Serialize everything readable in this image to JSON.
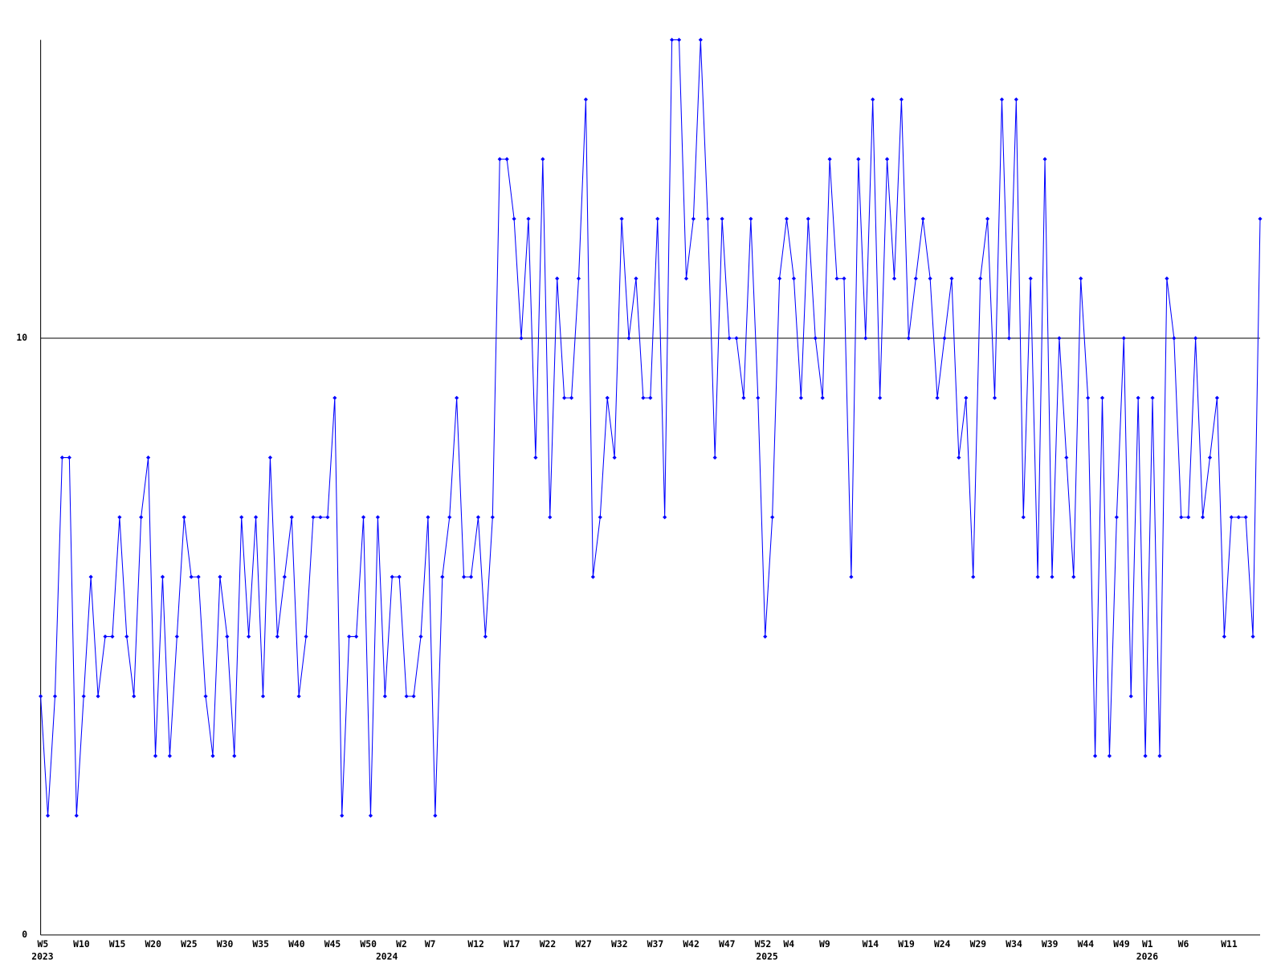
{
  "chart_data": {
    "type": "line",
    "categories": [
      "W5",
      null,
      null,
      null,
      null,
      "W10",
      null,
      null,
      null,
      null,
      "W15",
      null,
      null,
      null,
      null,
      "W20",
      null,
      null,
      null,
      null,
      "W25",
      null,
      null,
      null,
      null,
      "W30",
      null,
      null,
      null,
      null,
      "W35",
      null,
      null,
      null,
      null,
      "W40",
      null,
      null,
      null,
      null,
      "W45",
      null,
      null,
      null,
      null,
      "W50",
      null,
      null,
      null,
      null,
      "W2",
      null,
      null,
      null,
      "W7",
      null,
      null,
      null,
      null,
      null,
      "W12",
      null,
      null,
      null,
      null,
      "W17",
      null,
      null,
      null,
      null,
      "W22",
      null,
      null,
      null,
      null,
      "W27",
      null,
      null,
      null,
      null,
      "W32",
      null,
      null,
      null,
      null,
      "W37",
      null,
      null,
      null,
      null,
      "W42",
      null,
      null,
      null,
      null,
      "W47",
      null,
      null,
      null,
      null,
      "W52",
      null,
      null,
      null,
      "W4",
      null,
      null,
      null,
      null,
      "W9",
      null,
      null,
      null,
      null,
      null,
      "W14",
      null,
      null,
      null,
      null,
      "W19",
      null,
      null,
      null,
      null,
      "W24",
      null,
      null,
      null,
      null,
      "W29",
      null,
      null,
      null,
      null,
      "W34",
      null,
      null,
      null,
      null,
      "W39",
      null,
      null,
      null,
      null,
      "W44",
      null,
      null,
      null,
      null,
      "W49",
      null,
      null,
      null,
      "W1",
      null,
      null,
      null,
      null,
      "W6",
      null,
      null,
      null,
      null,
      null,
      "W11",
      null,
      null,
      null,
      null,
      null
    ],
    "year_labels": [
      "2023",
      null,
      null,
      null,
      null,
      null,
      null,
      null,
      null,
      null,
      null,
      null,
      null,
      null,
      null,
      null,
      null,
      null,
      null,
      null,
      null,
      null,
      null,
      null,
      null,
      null,
      null,
      null,
      null,
      null,
      null,
      null,
      null,
      null,
      null,
      null,
      null,
      null,
      null,
      null,
      null,
      null,
      null,
      null,
      null,
      null,
      null,
      null,
      "2024",
      null,
      null,
      null,
      null,
      null,
      null,
      null,
      null,
      null,
      null,
      null,
      null,
      null,
      null,
      null,
      null,
      null,
      null,
      null,
      null,
      null,
      null,
      null,
      null,
      null,
      null,
      null,
      null,
      null,
      null,
      null,
      null,
      null,
      null,
      null,
      null,
      null,
      null,
      null,
      null,
      null,
      null,
      null,
      null,
      null,
      null,
      null,
      null,
      null,
      null,
      null,
      null,
      "2025",
      null,
      null,
      null,
      null,
      null,
      null,
      null,
      null,
      null,
      null,
      null,
      null,
      null,
      null,
      null,
      null,
      null,
      null,
      null,
      null,
      null,
      null,
      null,
      null,
      null,
      null,
      null,
      null,
      null,
      null,
      null,
      null,
      null,
      null,
      null,
      null,
      null,
      null,
      null,
      null,
      null,
      null,
      null,
      null,
      null,
      null,
      null,
      null,
      null,
      null,
      null,
      null,
      "2026",
      null,
      null,
      null,
      null,
      null,
      null,
      null,
      null,
      null,
      null,
      null,
      null,
      null,
      null,
      null,
      null
    ],
    "values": [
      4,
      2,
      4,
      8,
      8,
      2,
      4,
      6,
      4,
      5,
      5,
      7,
      5,
      4,
      7,
      8,
      3,
      6,
      3,
      5,
      7,
      6,
      6,
      4,
      3,
      6,
      5,
      3,
      7,
      5,
      7,
      4,
      8,
      5,
      6,
      7,
      4,
      5,
      7,
      7,
      7,
      9,
      2,
      5,
      5,
      7,
      2,
      7,
      4,
      6,
      6,
      4,
      4,
      5,
      7,
      2,
      6,
      7,
      9,
      6,
      6,
      7,
      5,
      7,
      13,
      13,
      12,
      10,
      12,
      8,
      13,
      7,
      11,
      9,
      9,
      11,
      14,
      6,
      7,
      9,
      8,
      12,
      10,
      11,
      9,
      9,
      12,
      7,
      15,
      15,
      11,
      12,
      15,
      12,
      8,
      12,
      10,
      10,
      9,
      12,
      9,
      5,
      7,
      11,
      12,
      11,
      9,
      12,
      10,
      9,
      13,
      11,
      11,
      6,
      13,
      10,
      14,
      9,
      13,
      11,
      14,
      10,
      11,
      12,
      11,
      9,
      10,
      11,
      8,
      9,
      6,
      11,
      12,
      9,
      14,
      10,
      14,
      7,
      11,
      6,
      13,
      6,
      10,
      8,
      6,
      11,
      9,
      3,
      9,
      3,
      7,
      10,
      4,
      9,
      3,
      9,
      3,
      11,
      10,
      7,
      7,
      10,
      7,
      8,
      9,
      5,
      7,
      7,
      7,
      5,
      12
    ],
    "color": "#0000ff",
    "ylim": [
      0,
      15
    ],
    "yticks": [
      0,
      10
    ],
    "grid": true
  }
}
